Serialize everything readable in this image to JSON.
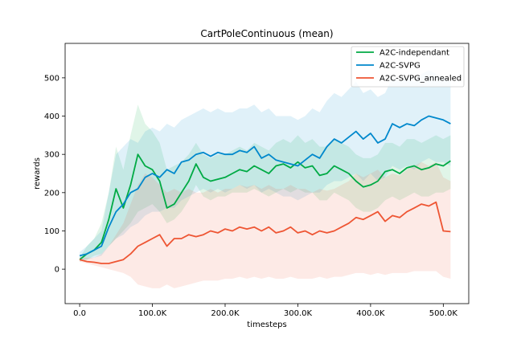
{
  "chart_data": {
    "type": "line",
    "title": "CartPoleContinuous (mean)",
    "xlabel": "timesteps",
    "ylabel": "rewards",
    "xlim": [
      -20000,
      535000
    ],
    "ylim": [
      -90,
      590
    ],
    "xticks": [
      0,
      100000,
      200000,
      300000,
      400000,
      500000
    ],
    "xtick_labels": [
      "0.0",
      "100.0K",
      "200.0K",
      "300.0K",
      "400.0K",
      "500.0K"
    ],
    "yticks": [
      0,
      100,
      200,
      300,
      400,
      500
    ],
    "ytick_labels": [
      "0",
      "100",
      "200",
      "300",
      "400",
      "500"
    ],
    "grid": false,
    "legend_position": "top-right",
    "x": [
      0,
      10000,
      20000,
      30000,
      40000,
      50000,
      60000,
      70000,
      80000,
      90000,
      100000,
      110000,
      120000,
      130000,
      140000,
      150000,
      160000,
      170000,
      180000,
      190000,
      200000,
      210000,
      220000,
      230000,
      240000,
      250000,
      260000,
      270000,
      280000,
      290000,
      300000,
      310000,
      320000,
      330000,
      340000,
      350000,
      360000,
      370000,
      380000,
      390000,
      400000,
      410000,
      420000,
      430000,
      440000,
      450000,
      460000,
      470000,
      480000,
      490000,
      500000,
      510000
    ],
    "series": [
      {
        "name": "A2C-independant",
        "color": "#00aa44",
        "values": [
          25,
          40,
          50,
          70,
          130,
          210,
          160,
          220,
          300,
          270,
          260,
          230,
          160,
          170,
          200,
          230,
          275,
          240,
          230,
          235,
          240,
          250,
          260,
          255,
          270,
          260,
          250,
          270,
          275,
          265,
          280,
          265,
          270,
          245,
          250,
          270,
          260,
          250,
          230,
          215,
          220,
          230,
          255,
          260,
          250,
          265,
          270,
          260,
          265,
          275,
          270,
          283
        ],
        "lower": [
          20,
          25,
          35,
          40,
          60,
          80,
          100,
          120,
          150,
          160,
          170,
          150,
          120,
          130,
          150,
          180,
          220,
          190,
          180,
          190,
          190,
          200,
          200,
          200,
          210,
          200,
          190,
          200,
          210,
          200,
          210,
          200,
          200,
          180,
          180,
          200,
          190,
          180,
          160,
          150,
          150,
          160,
          180,
          190,
          180,
          190,
          200,
          190,
          190,
          200,
          200,
          210
        ],
        "upper": [
          30,
          60,
          80,
          120,
          200,
          320,
          260,
          350,
          430,
          380,
          360,
          330,
          260,
          270,
          280,
          300,
          330,
          300,
          290,
          300,
          300,
          310,
          320,
          310,
          330,
          320,
          310,
          330,
          340,
          330,
          350,
          330,
          340,
          320,
          320,
          340,
          330,
          320,
          300,
          290,
          290,
          300,
          330,
          330,
          320,
          340,
          340,
          330,
          340,
          350,
          340,
          350
        ]
      },
      {
        "name": "A2C-SVPG",
        "color": "#0088cc",
        "values": [
          35,
          40,
          50,
          60,
          110,
          150,
          170,
          200,
          210,
          240,
          250,
          240,
          260,
          250,
          280,
          285,
          300,
          305,
          295,
          305,
          300,
          300,
          310,
          305,
          320,
          290,
          300,
          285,
          280,
          275,
          270,
          285,
          300,
          290,
          320,
          340,
          330,
          345,
          360,
          340,
          355,
          330,
          340,
          380,
          370,
          380,
          375,
          390,
          400,
          395,
          390,
          380
        ],
        "lower": [
          25,
          25,
          30,
          35,
          60,
          80,
          90,
          110,
          120,
          140,
          150,
          150,
          160,
          160,
          180,
          190,
          200,
          210,
          200,
          210,
          200,
          210,
          220,
          210,
          220,
          200,
          210,
          200,
          190,
          190,
          180,
          190,
          200,
          200,
          220,
          230,
          230,
          240,
          250,
          230,
          250,
          230,
          240,
          270,
          260,
          270,
          260,
          280,
          290,
          280,
          280,
          270
        ],
        "upper": [
          45,
          60,
          80,
          100,
          200,
          300,
          320,
          340,
          330,
          360,
          370,
          360,
          380,
          370,
          390,
          400,
          410,
          420,
          410,
          420,
          410,
          410,
          420,
          420,
          430,
          410,
          420,
          400,
          400,
          400,
          390,
          400,
          420,
          410,
          440,
          460,
          450,
          470,
          490,
          460,
          470,
          450,
          460,
          500,
          490,
          500,
          490,
          510,
          520,
          510,
          500,
          490
        ]
      },
      {
        "name": "A2C-SVPG_annealed",
        "color": "#ee5533",
        "values": [
          25,
          20,
          18,
          15,
          15,
          20,
          25,
          40,
          60,
          70,
          80,
          90,
          60,
          80,
          80,
          90,
          85,
          90,
          100,
          95,
          105,
          100,
          110,
          105,
          110,
          100,
          110,
          95,
          100,
          110,
          95,
          100,
          90,
          100,
          95,
          100,
          110,
          120,
          135,
          130,
          140,
          150,
          125,
          140,
          135,
          150,
          160,
          170,
          165,
          175,
          100,
          98
        ],
        "lower": [
          20,
          15,
          10,
          5,
          0,
          -5,
          -10,
          -20,
          -40,
          -45,
          -50,
          -50,
          -40,
          -50,
          -45,
          -40,
          -35,
          -30,
          -30,
          -30,
          -25,
          -25,
          -20,
          -25,
          -20,
          -25,
          -20,
          -25,
          -25,
          -20,
          -25,
          -25,
          -25,
          -20,
          -25,
          -20,
          -20,
          -15,
          -10,
          -10,
          -15,
          -10,
          -15,
          -10,
          -10,
          -10,
          -5,
          -5,
          -5,
          -5,
          -20,
          -25
        ],
        "upper": [
          30,
          30,
          30,
          40,
          60,
          90,
          120,
          170,
          220,
          250,
          240,
          220,
          200,
          210,
          200,
          210,
          200,
          200,
          210,
          200,
          210,
          210,
          220,
          215,
          220,
          210,
          220,
          210,
          210,
          220,
          210,
          210,
          200,
          210,
          205,
          210,
          220,
          230,
          250,
          240,
          250,
          260,
          240,
          250,
          245,
          260,
          270,
          280,
          270,
          280,
          240,
          230
        ]
      }
    ]
  }
}
